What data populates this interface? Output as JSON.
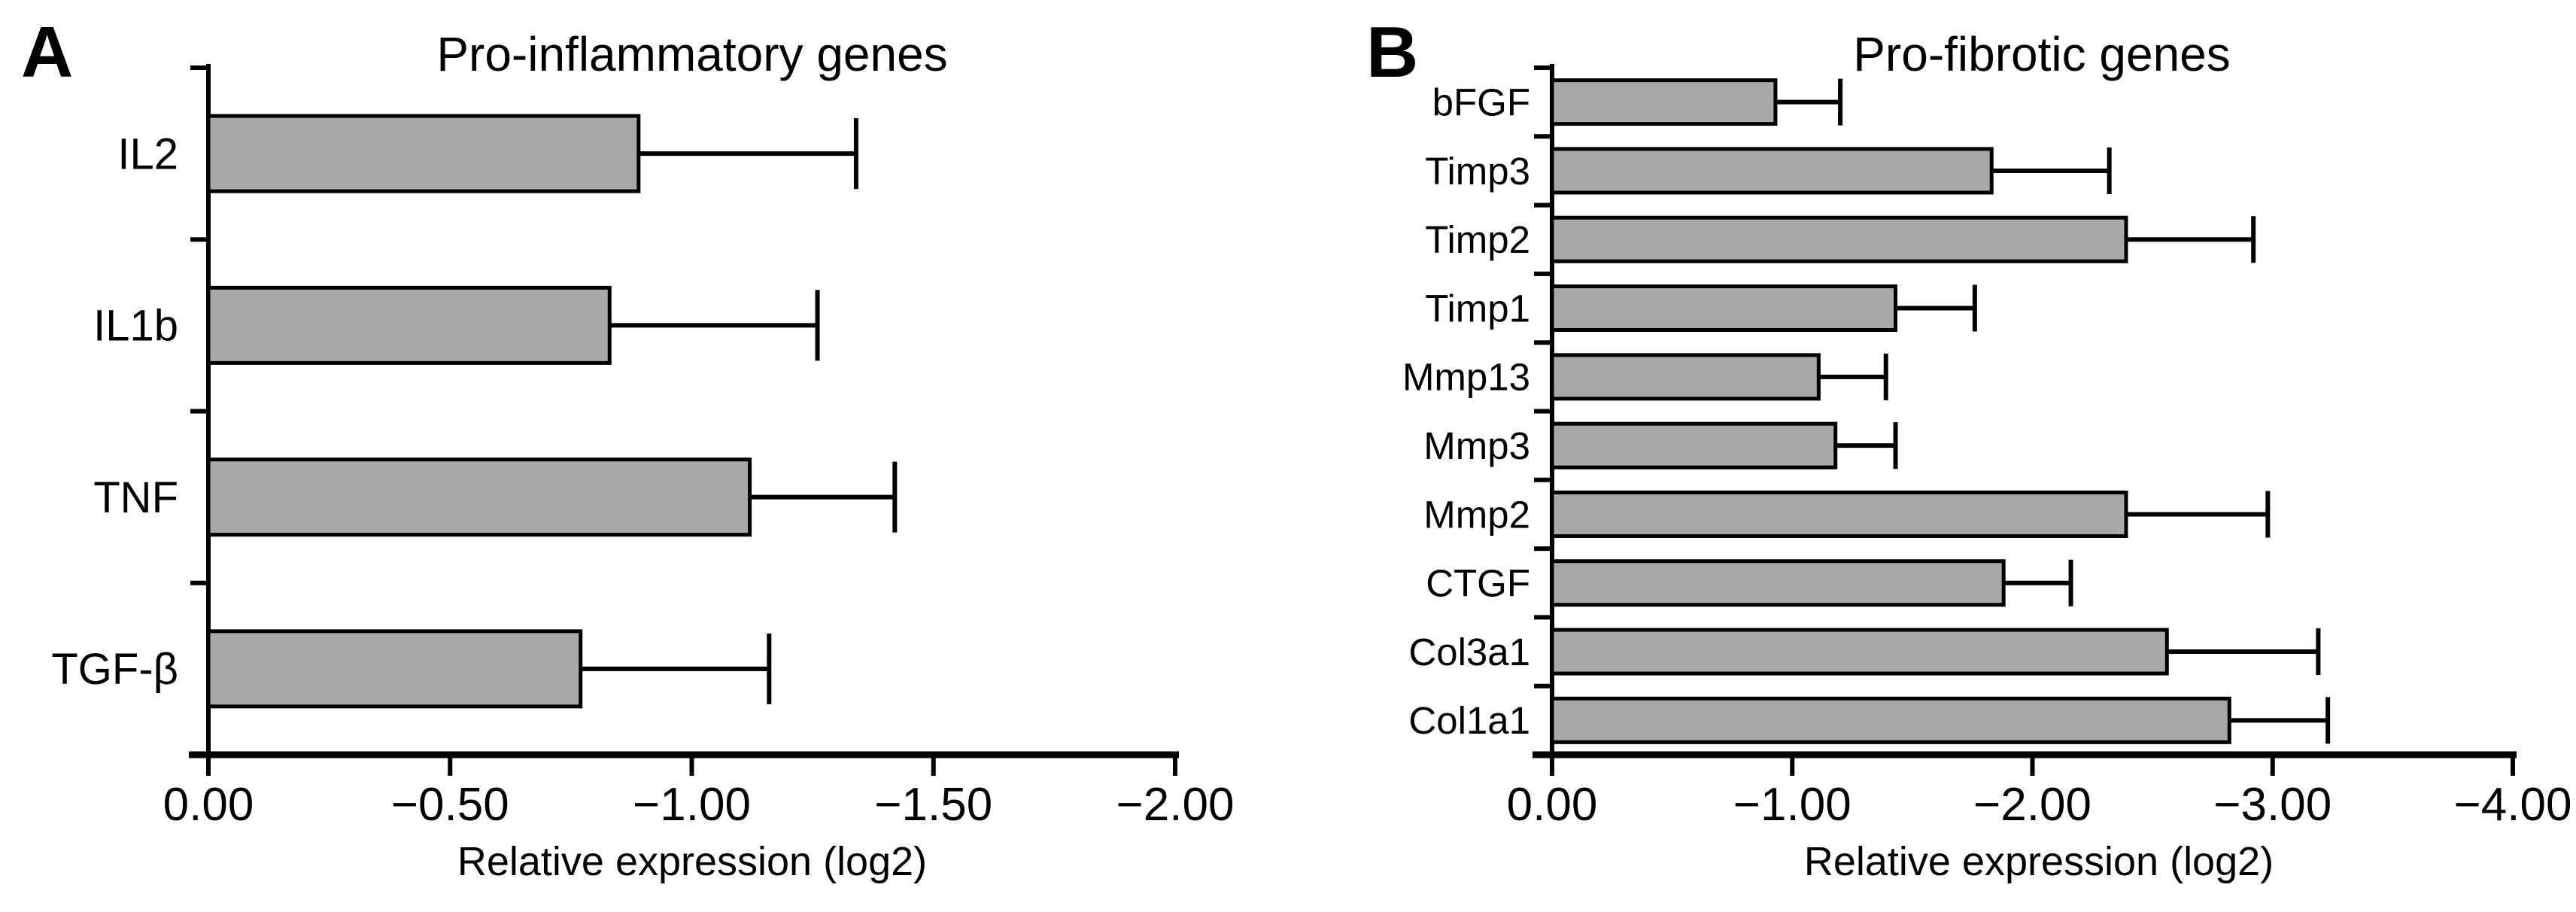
{
  "figure": {
    "background": "#ffffff",
    "axis_color": "#000000",
    "bar_fill": "#a8a8a8",
    "bar_edge": "#000000"
  },
  "chart_data": [
    {
      "type": "bar",
      "orientation": "horizontal",
      "panel_letter": "A",
      "title": "Pro-inflammatory genes",
      "xlabel": "Relative expression (log2)",
      "ylabel": "",
      "categories": [
        "IL2",
        "IL1b",
        "TNF",
        "TGF-β"
      ],
      "values": [
        -0.89,
        -0.83,
        -1.12,
        -0.77
      ],
      "errors": [
        0.45,
        0.43,
        0.3,
        0.39
      ],
      "xlim": [
        0,
        -2
      ],
      "xticks": [
        0,
        -0.5,
        -1,
        -1.5,
        -2
      ],
      "xtick_labels": [
        "0.00",
        "−0.50",
        "−1.00",
        "−1.50",
        "−2.00"
      ],
      "grid": false,
      "legend": null,
      "error_bars": "one-sided, extending in negative direction with end caps"
    },
    {
      "type": "bar",
      "orientation": "horizontal",
      "panel_letter": "B",
      "title": "Pro-fibrotic genes",
      "xlabel": "Relative expression (log2)",
      "ylabel": "",
      "categories": [
        "bFGF",
        "Timp3",
        "Timp2",
        "Timp1",
        "Mmp13",
        "Mmp3",
        "Mmp2",
        "CTGF",
        "Col3a1",
        "Col1a1"
      ],
      "values": [
        -0.93,
        -1.83,
        -2.39,
        -1.43,
        -1.11,
        -1.18,
        -2.39,
        -1.88,
        -2.56,
        -2.82
      ],
      "errors": [
        0.27,
        0.49,
        0.53,
        0.33,
        0.28,
        0.25,
        0.59,
        0.28,
        0.63,
        0.41
      ],
      "xlim": [
        0,
        -4
      ],
      "xticks": [
        0,
        -1,
        -2,
        -3,
        -4
      ],
      "xtick_labels": [
        "0.00",
        "−1.00",
        "−2.00",
        "−3.00",
        "−4.00"
      ],
      "grid": false,
      "legend": null,
      "error_bars": "one-sided, extending in negative direction with end caps"
    }
  ]
}
